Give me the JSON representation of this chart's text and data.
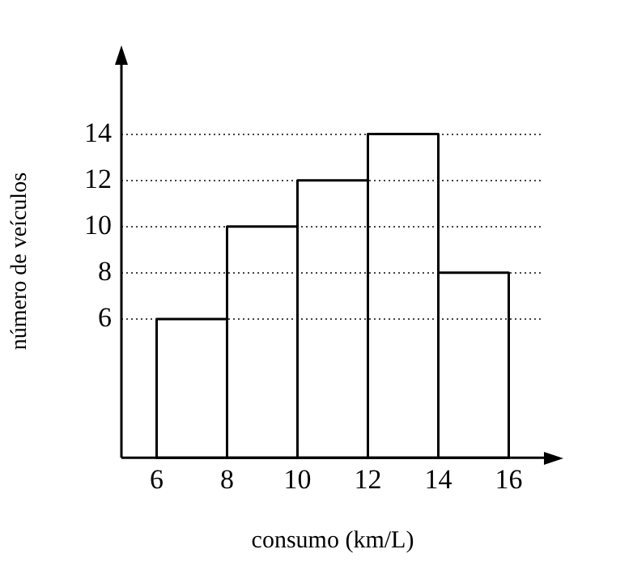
{
  "chart_data": {
    "type": "histogram",
    "xlabel": "consumo (km/L)",
    "ylabel": "número de veículos",
    "bins": [
      6,
      8,
      10,
      12,
      14,
      16
    ],
    "values": [
      6,
      10,
      12,
      14,
      8
    ],
    "color": "#000000",
    "xlim": [
      5,
      17
    ],
    "xticks": [
      6,
      8,
      10,
      12,
      14,
      16
    ],
    "ylim": [
      0,
      17
    ],
    "yticks": [
      6,
      8,
      10,
      12,
      14
    ],
    "grid": "y",
    "line_style": "dotted"
  }
}
